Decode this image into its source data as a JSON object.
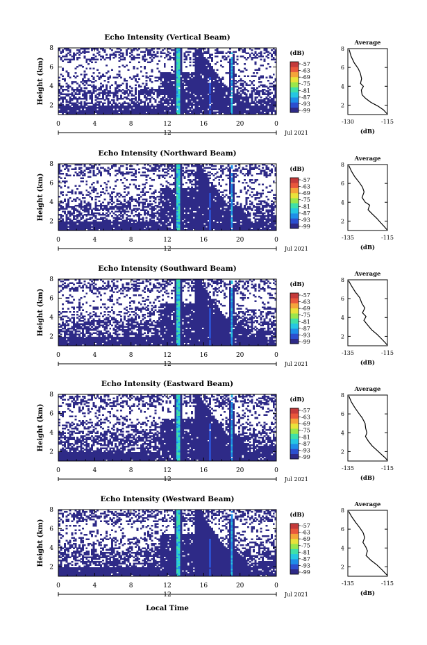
{
  "figure": {
    "xlabel": "Local Time",
    "date_label": "Jul 2021",
    "day_label": "12",
    "colorbar_label": "(dB)",
    "colorbar_ticks": [
      "-57",
      "-63",
      "-69",
      "-75",
      "-81",
      "-87",
      "-93",
      "-99"
    ],
    "average_title": "Average",
    "average_xlabel": "(dB)",
    "palette": [
      "#2e2a87",
      "#2c4fcf",
      "#1e8ee8",
      "#25c7e2",
      "#3fe0a8",
      "#9ae64b",
      "#e9e23a",
      "#f5a43a",
      "#e9573c",
      "#c43a3a"
    ]
  },
  "chart_data": [
    {
      "type": "heatmap",
      "title": "Echo Intensity (Vertical Beam)",
      "ylabel": "Height (km)",
      "x_ticks": [
        "0",
        "4",
        "8",
        "12",
        "16",
        "20",
        "0"
      ],
      "y_ticks": [
        "2",
        "4",
        "6",
        "8"
      ],
      "xlim": [
        0,
        24
      ],
      "ylim": [
        1,
        8
      ],
      "zlim": [
        -99,
        -57
      ],
      "average_profile": {
        "x_ticks": [
          "-130",
          "-115"
        ],
        "xlim": [
          -130,
          -115
        ],
        "ylim": [
          1,
          8
        ],
        "points": [
          [
            -129.5,
            7.9
          ],
          [
            -128.8,
            7.2
          ],
          [
            -127.6,
            6.5
          ],
          [
            -126.1,
            5.9
          ],
          [
            -125.3,
            5.4
          ],
          [
            -124.8,
            4.8
          ],
          [
            -125.2,
            4.3
          ],
          [
            -124.1,
            4.0
          ],
          [
            -124.9,
            3.6
          ],
          [
            -124.6,
            3.1
          ],
          [
            -123.2,
            2.7
          ],
          [
            -121.3,
            2.3
          ],
          [
            -118.6,
            1.9
          ],
          [
            -116.5,
            1.5
          ],
          [
            -115.2,
            1.1
          ]
        ]
      }
    },
    {
      "type": "heatmap",
      "title": "Echo Intensity (Northward Beam)",
      "ylabel": "Height (km)",
      "x_ticks": [
        "0",
        "4",
        "8",
        "12",
        "16",
        "20",
        "0"
      ],
      "y_ticks": [
        "2",
        "4",
        "6",
        "8"
      ],
      "xlim": [
        0,
        24
      ],
      "ylim": [
        1,
        8
      ],
      "zlim": [
        -99,
        -57
      ],
      "average_profile": {
        "x_ticks": [
          "-135",
          "-115"
        ],
        "xlim": [
          -135,
          -115
        ],
        "ylim": [
          1,
          8
        ],
        "points": [
          [
            -134.5,
            7.9
          ],
          [
            -133.2,
            7.3
          ],
          [
            -131.5,
            6.7
          ],
          [
            -129.2,
            6.1
          ],
          [
            -127.6,
            5.6
          ],
          [
            -126.8,
            5.1
          ],
          [
            -127.8,
            4.5
          ],
          [
            -126.2,
            4.0
          ],
          [
            -124.0,
            3.7
          ],
          [
            -124.8,
            3.2
          ],
          [
            -122.9,
            2.8
          ],
          [
            -120.4,
            2.3
          ],
          [
            -118.3,
            1.8
          ],
          [
            -116.5,
            1.4
          ],
          [
            -115.3,
            1.1
          ]
        ]
      }
    },
    {
      "type": "heatmap",
      "title": "Echo Intensity (Southward Beam)",
      "ylabel": "Height (km)",
      "x_ticks": [
        "0",
        "4",
        "8",
        "12",
        "16",
        "20",
        "0"
      ],
      "y_ticks": [
        "2",
        "4",
        "6",
        "8"
      ],
      "xlim": [
        0,
        24
      ],
      "ylim": [
        1,
        8
      ],
      "zlim": [
        -99,
        -57
      ],
      "average_profile": {
        "x_ticks": [
          "-135",
          "-115"
        ],
        "xlim": [
          -135,
          -115
        ],
        "ylim": [
          1,
          8
        ],
        "points": [
          [
            -134.6,
            7.9
          ],
          [
            -133.0,
            7.3
          ],
          [
            -131.2,
            6.7
          ],
          [
            -129.0,
            6.1
          ],
          [
            -127.9,
            5.5
          ],
          [
            -126.4,
            5.0
          ],
          [
            -127.6,
            4.5
          ],
          [
            -125.8,
            4.1
          ],
          [
            -126.9,
            3.7
          ],
          [
            -125.0,
            3.2
          ],
          [
            -123.0,
            2.7
          ],
          [
            -120.2,
            2.2
          ],
          [
            -117.8,
            1.7
          ],
          [
            -116.0,
            1.3
          ],
          [
            -115.2,
            1.1
          ]
        ]
      }
    },
    {
      "type": "heatmap",
      "title": "Echo Intensity (Eastward Beam)",
      "ylabel": "Height (km)",
      "x_ticks": [
        "0",
        "4",
        "8",
        "12",
        "16",
        "20",
        "0"
      ],
      "y_ticks": [
        "2",
        "4",
        "6",
        "8"
      ],
      "xlim": [
        0,
        24
      ],
      "ylim": [
        1,
        8
      ],
      "zlim": [
        -99,
        -57
      ],
      "average_profile": {
        "x_ticks": [
          "-135",
          "-115"
        ],
        "xlim": [
          -135,
          -115
        ],
        "ylim": [
          1,
          8
        ],
        "points": [
          [
            -134.5,
            7.9
          ],
          [
            -133.3,
            7.3
          ],
          [
            -131.6,
            6.7
          ],
          [
            -129.6,
            6.1
          ],
          [
            -127.8,
            5.6
          ],
          [
            -126.3,
            5.0
          ],
          [
            -126.0,
            4.5
          ],
          [
            -125.4,
            4.0
          ],
          [
            -126.1,
            3.6
          ],
          [
            -124.6,
            3.1
          ],
          [
            -122.7,
            2.6
          ],
          [
            -120.1,
            2.1
          ],
          [
            -117.5,
            1.6
          ],
          [
            -115.9,
            1.3
          ],
          [
            -115.2,
            1.1
          ]
        ]
      }
    },
    {
      "type": "heatmap",
      "title": "Echo Intensity (Westward Beam)",
      "ylabel": "Height (km)",
      "x_ticks": [
        "0",
        "4",
        "8",
        "12",
        "16",
        "20",
        "0"
      ],
      "y_ticks": [
        "2",
        "4",
        "6",
        "8"
      ],
      "xlim": [
        0,
        24
      ],
      "ylim": [
        1,
        8
      ],
      "zlim": [
        -99,
        -57
      ],
      "average_profile": {
        "x_ticks": [
          "-135",
          "-115"
        ],
        "xlim": [
          -135,
          -115
        ],
        "ylim": [
          1,
          8
        ],
        "points": [
          [
            -134.6,
            7.9
          ],
          [
            -133.0,
            7.3
          ],
          [
            -131.0,
            6.7
          ],
          [
            -128.8,
            6.1
          ],
          [
            -127.2,
            5.6
          ],
          [
            -126.5,
            5.1
          ],
          [
            -127.4,
            4.6
          ],
          [
            -125.9,
            4.1
          ],
          [
            -125.1,
            3.7
          ],
          [
            -125.8,
            3.2
          ],
          [
            -123.4,
            2.7
          ],
          [
            -120.3,
            2.2
          ],
          [
            -117.8,
            1.7
          ],
          [
            -116.0,
            1.3
          ],
          [
            -115.1,
            1.1
          ]
        ]
      }
    }
  ]
}
